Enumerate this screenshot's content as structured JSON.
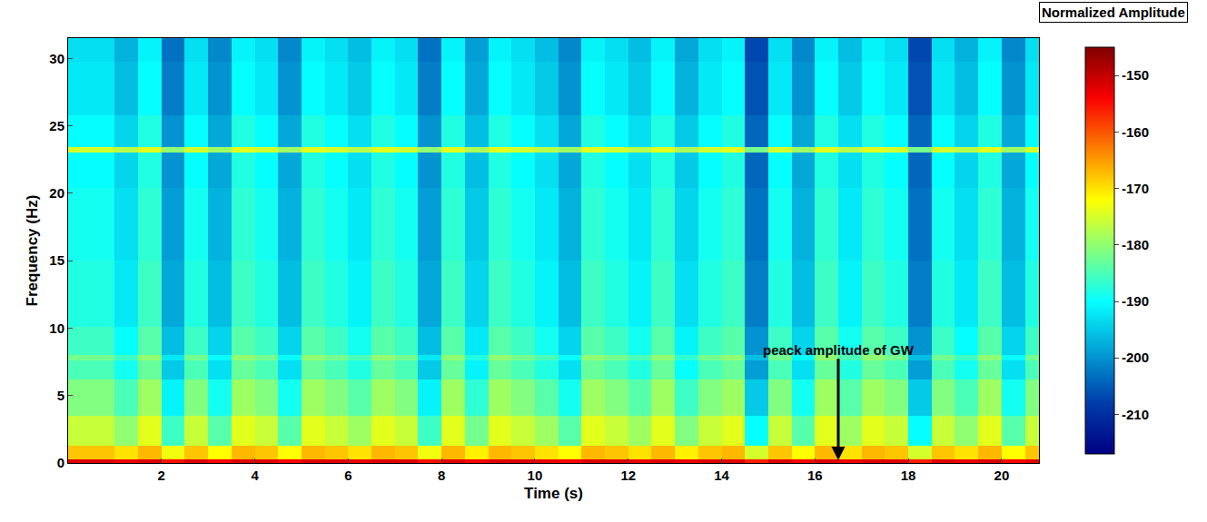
{
  "chart_data": {
    "type": "heatmap",
    "x_label": "Time (s)",
    "y_label": "Frequency (Hz)",
    "color": "Jet",
    "x": [
      0.25,
      0.75,
      1.25,
      1.75,
      2.25,
      2.75,
      3.25,
      3.75,
      4.25,
      4.75,
      5.25,
      5.75,
      6.25,
      6.75,
      7.25,
      7.75,
      8.25,
      8.75,
      9.25,
      9.75,
      10.25,
      10.75,
      11.25,
      11.75,
      12.25,
      12.75,
      13.25,
      13.75,
      14.25,
      14.75,
      15.25,
      15.75,
      16.25,
      16.75,
      17.25,
      17.75,
      18.25,
      18.75,
      19.25,
      19.75,
      20.25,
      20.75
    ],
    "y": [
      0.1,
      0.5,
      2,
      5,
      7.4,
      7.8,
      8.2,
      12,
      18,
      22.8,
      23.2,
      23.6,
      28,
      31.5
    ],
    "z": [
      [
        -152,
        -152,
        -153,
        -152,
        -155,
        -152,
        -154,
        -152,
        -152,
        -154,
        -152,
        -152,
        -153,
        -152,
        -152,
        -155,
        -152,
        -154,
        -152,
        -152,
        -153,
        -154,
        -152,
        -152,
        -153,
        -152,
        -153,
        -152,
        -152,
        -156,
        -152,
        -154,
        -152,
        -153,
        -152,
        -152,
        -156,
        -152,
        -153,
        -152,
        -154,
        -152
      ],
      [
        -168,
        -168,
        -170,
        -167,
        -173,
        -168,
        -172,
        -167,
        -168,
        -172,
        -167,
        -168,
        -170,
        -167,
        -168,
        -173,
        -167,
        -171,
        -167,
        -168,
        -170,
        -172,
        -167,
        -168,
        -170,
        -167,
        -171,
        -168,
        -167,
        -175,
        -168,
        -172,
        -167,
        -170,
        -167,
        -168,
        -175,
        -168,
        -170,
        -167,
        -172,
        -168
      ],
      [
        -176,
        -176,
        -180,
        -174,
        -186,
        -176,
        -184,
        -174,
        -176,
        -184,
        -174,
        -176,
        -179,
        -174,
        -176,
        -186,
        -174,
        -182,
        -174,
        -176,
        -179,
        -184,
        -174,
        -176,
        -179,
        -174,
        -181,
        -176,
        -174,
        -190,
        -176,
        -184,
        -174,
        -179,
        -174,
        -176,
        -190,
        -176,
        -180,
        -174,
        -184,
        -176
      ],
      [
        -181,
        -181,
        -185,
        -179,
        -191,
        -181,
        -189,
        -179,
        -181,
        -189,
        -179,
        -181,
        -184,
        -179,
        -181,
        -191,
        -179,
        -187,
        -179,
        -181,
        -184,
        -189,
        -179,
        -181,
        -184,
        -179,
        -186,
        -181,
        -179,
        -195,
        -181,
        -189,
        -179,
        -184,
        -179,
        -181,
        -195,
        -181,
        -185,
        -179,
        -189,
        -181
      ],
      [
        -185,
        -185,
        -189,
        -183,
        -195,
        -185,
        -193,
        -183,
        -185,
        -193,
        -183,
        -185,
        -188,
        -183,
        -185,
        -195,
        -183,
        -191,
        -183,
        -185,
        -188,
        -193,
        -183,
        -185,
        -188,
        -183,
        -190,
        -185,
        -183,
        -199,
        -185,
        -193,
        -183,
        -188,
        -183,
        -185,
        -199,
        -185,
        -189,
        -183,
        -193,
        -185
      ],
      [
        -182,
        -182,
        -186,
        -180,
        -192,
        -182,
        -190,
        -180,
        -182,
        -190,
        -180,
        -182,
        -185,
        -180,
        -182,
        -192,
        -180,
        -188,
        -180,
        -182,
        -185,
        -190,
        -180,
        -182,
        -185,
        -180,
        -187,
        -182,
        -180,
        -196,
        -182,
        -190,
        -180,
        -185,
        -180,
        -182,
        -196,
        -182,
        -186,
        -180,
        -190,
        -182
      ],
      [
        -186,
        -186,
        -190,
        -184,
        -196,
        -186,
        -194,
        -184,
        -186,
        -194,
        -184,
        -186,
        -189,
        -184,
        -186,
        -196,
        -184,
        -192,
        -184,
        -186,
        -189,
        -194,
        -184,
        -186,
        -189,
        -184,
        -191,
        -186,
        -184,
        -200,
        -186,
        -194,
        -184,
        -189,
        -184,
        -186,
        -200,
        -186,
        -190,
        -184,
        -194,
        -186
      ],
      [
        -188,
        -188,
        -192,
        -186,
        -198,
        -188,
        -196,
        -186,
        -188,
        -196,
        -186,
        -188,
        -191,
        -186,
        -188,
        -198,
        -186,
        -194,
        -186,
        -188,
        -191,
        -196,
        -186,
        -188,
        -191,
        -186,
        -193,
        -188,
        -186,
        -202,
        -188,
        -196,
        -186,
        -191,
        -186,
        -188,
        -202,
        -188,
        -192,
        -186,
        -196,
        -188
      ],
      [
        -189,
        -189,
        -193,
        -187,
        -199,
        -189,
        -197,
        -187,
        -189,
        -197,
        -187,
        -189,
        -192,
        -187,
        -189,
        -199,
        -187,
        -195,
        -187,
        -189,
        -192,
        -197,
        -187,
        -189,
        -192,
        -187,
        -194,
        -189,
        -187,
        -203,
        -189,
        -197,
        -187,
        -192,
        -187,
        -189,
        -203,
        -189,
        -193,
        -187,
        -197,
        -189
      ],
      [
        -190,
        -190,
        -194,
        -188,
        -200,
        -190,
        -198,
        -188,
        -190,
        -198,
        -188,
        -190,
        -193,
        -188,
        -190,
        -200,
        -188,
        -196,
        -188,
        -190,
        -193,
        -198,
        -188,
        -190,
        -193,
        -188,
        -195,
        -190,
        -188,
        -204,
        -190,
        -198,
        -188,
        -193,
        -188,
        -190,
        -204,
        -190,
        -194,
        -188,
        -198,
        -190
      ],
      [
        -175,
        -175,
        -177,
        -174,
        -180,
        -175,
        -179,
        -174,
        -175,
        -179,
        -174,
        -175,
        -177,
        -174,
        -175,
        -180,
        -174,
        -178,
        -174,
        -175,
        -177,
        -179,
        -174,
        -175,
        -177,
        -174,
        -178,
        -175,
        -174,
        -182,
        -175,
        -179,
        -174,
        -177,
        -174,
        -175,
        -182,
        -175,
        -177,
        -174,
        -179,
        -175
      ],
      [
        -190,
        -190,
        -194,
        -188,
        -200,
        -190,
        -198,
        -188,
        -190,
        -198,
        -188,
        -190,
        -193,
        -188,
        -190,
        -200,
        -188,
        -196,
        -188,
        -190,
        -193,
        -198,
        -188,
        -190,
        -193,
        -188,
        -195,
        -190,
        -188,
        -204,
        -190,
        -198,
        -188,
        -193,
        -188,
        -190,
        -204,
        -190,
        -194,
        -188,
        -198,
        -190
      ],
      [
        -192,
        -192,
        -196,
        -190,
        -202,
        -192,
        -200,
        -190,
        -192,
        -200,
        -190,
        -192,
        -195,
        -190,
        -192,
        -202,
        -190,
        -198,
        -190,
        -192,
        -195,
        -200,
        -190,
        -192,
        -195,
        -190,
        -197,
        -192,
        -190,
        -206,
        -192,
        -200,
        -190,
        -195,
        -190,
        -192,
        -206,
        -192,
        -196,
        -190,
        -200,
        -192
      ],
      [
        -193,
        -193,
        -197,
        -191,
        -203,
        -193,
        -201,
        -191,
        -193,
        -201,
        -191,
        -193,
        -196,
        -191,
        -193,
        -203,
        -191,
        -199,
        -191,
        -193,
        -196,
        -201,
        -191,
        -193,
        -196,
        -191,
        -198,
        -193,
        -191,
        -207,
        -193,
        -201,
        -191,
        -196,
        -191,
        -193,
        -207,
        -193,
        -197,
        -191,
        -201,
        -193
      ]
    ],
    "xlim": [
      0,
      20.8
    ],
    "ylim": [
      0,
      31.5
    ],
    "xticks": [
      2,
      4,
      6,
      8,
      10,
      12,
      14,
      16,
      18,
      20
    ],
    "yticks": [
      0,
      5,
      10,
      15,
      20,
      25,
      30
    ],
    "colorbar": {
      "title": "Normalized Amplitude",
      "range": [
        -217,
        -145
      ],
      "ticks": [
        -150,
        -160,
        -170,
        -180,
        -190,
        -200,
        -210
      ]
    },
    "annotations": [
      {
        "text": "peack amplitude of GW",
        "x": 16.5,
        "y": 0.2,
        "text_x": 16.5,
        "text_y": 8.4
      }
    ]
  }
}
